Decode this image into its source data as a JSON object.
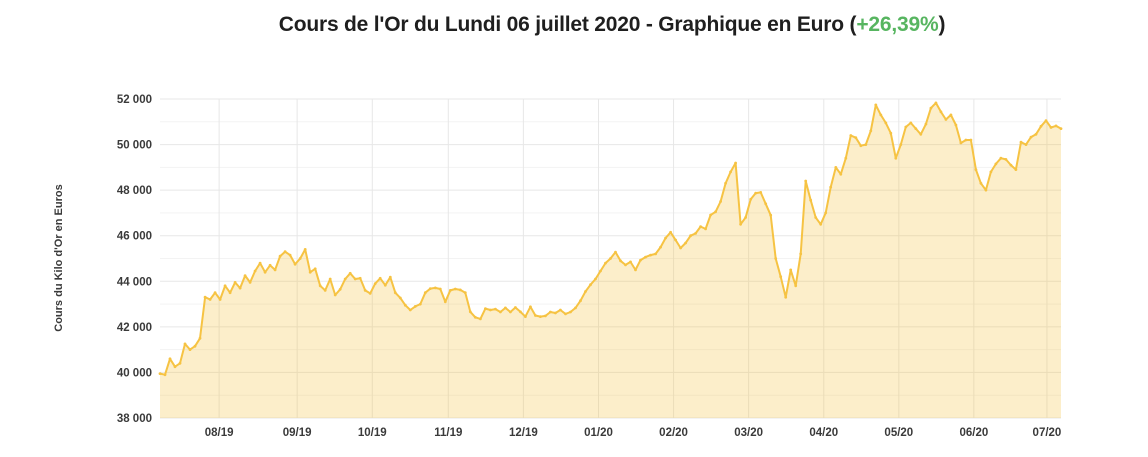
{
  "page": {
    "title_prefix": "Cours de l'Or du Lundi 06 juillet 2020 - Graphique en Euro (",
    "title_change": "+26,39%",
    "title_suffix": ")",
    "title_color": "#1f1f1f",
    "change_color": "#57b560"
  },
  "chart_data": {
    "type": "area",
    "title": "Cours de l'Or du Lundi 06 juillet 2020 - Graphique en Euro (+26,39%)",
    "percent_change": "+26,39%",
    "xlabel": "",
    "ylabel": "Cours du Kilo d'Or en Euros",
    "ylim": [
      38000,
      52000
    ],
    "y_tick_step": 2000,
    "y_minor_step": 1000,
    "grid": true,
    "legend": "none",
    "line_color": "#f6c343",
    "fill_color": "rgba(246,195,66,0.28)",
    "grid_major_color": "#e7e7e7",
    "grid_minor_color": "#f3f3f3",
    "tick_label_color": "#3a3a3a",
    "y_tick_values": [
      52000,
      50000,
      48000,
      46000,
      44000,
      42000,
      40000,
      38000
    ],
    "y_tick_labels": [
      "52 000",
      "50 000",
      "48 000",
      "46 000",
      "44 000",
      "42 000",
      "40 000",
      "38 000"
    ],
    "x_ticks": [
      {
        "label": "08/19",
        "pos": 6.56
      },
      {
        "label": "09/19",
        "pos": 15.22
      },
      {
        "label": "10/19",
        "pos": 23.56
      },
      {
        "label": "11/19",
        "pos": 32.0
      },
      {
        "label": "12/19",
        "pos": 40.33
      },
      {
        "label": "01/20",
        "pos": 48.67
      },
      {
        "label": "02/20",
        "pos": 57.0
      },
      {
        "label": "03/20",
        "pos": 65.33
      },
      {
        "label": "04/20",
        "pos": 73.67
      },
      {
        "label": "05/20",
        "pos": 82.0
      },
      {
        "label": "06/20",
        "pos": 90.33
      },
      {
        "label": "07/20",
        "pos": 98.44
      }
    ],
    "series": [
      {
        "name": "Cours du Kilo d'Or en Euros",
        "x_spacing": "uniform",
        "values": [
          39950,
          39900,
          40600,
          40250,
          40400,
          41250,
          41000,
          41150,
          41500,
          43300,
          43200,
          43500,
          43200,
          43800,
          43500,
          43950,
          43700,
          44250,
          43950,
          44450,
          44800,
          44400,
          44700,
          44500,
          45100,
          45300,
          45150,
          44750,
          45000,
          45400,
          44400,
          44550,
          43800,
          43600,
          44100,
          43400,
          43650,
          44100,
          44350,
          44100,
          44130,
          43600,
          43470,
          43900,
          44130,
          43830,
          44180,
          43500,
          43270,
          42950,
          42740,
          42900,
          43000,
          43500,
          43680,
          43710,
          43660,
          43100,
          43600,
          43660,
          43620,
          43500,
          42660,
          42420,
          42350,
          42800,
          42740,
          42780,
          42650,
          42830,
          42650,
          42850,
          42660,
          42450,
          42880,
          42500,
          42450,
          42480,
          42650,
          42610,
          42740,
          42570,
          42650,
          42830,
          43150,
          43550,
          43850,
          44100,
          44450,
          44800,
          45000,
          45280,
          44900,
          44720,
          44850,
          44500,
          44930,
          45060,
          45150,
          45200,
          45500,
          45900,
          46150,
          45810,
          45460,
          45680,
          46000,
          46100,
          46400,
          46300,
          46910,
          47050,
          47500,
          48300,
          48800,
          49190,
          46500,
          46800,
          47600,
          47870,
          47900,
          47400,
          46900,
          45000,
          44200,
          43300,
          44500,
          43800,
          45200,
          48400,
          47560,
          46800,
          46500,
          47000,
          48130,
          49000,
          48700,
          49400,
          50400,
          50300,
          49950,
          50000,
          50600,
          51740,
          51300,
          50950,
          50500,
          49400,
          50000,
          50770,
          50950,
          50700,
          50450,
          50900,
          51600,
          51830,
          51440,
          51100,
          51300,
          50860,
          50070,
          50200,
          50200,
          48900,
          48300,
          48000,
          48800,
          49150,
          49400,
          49350,
          49100,
          48900,
          50110,
          50000,
          50330,
          50450,
          50800,
          51050,
          50750,
          50820,
          50700
        ]
      }
    ]
  }
}
